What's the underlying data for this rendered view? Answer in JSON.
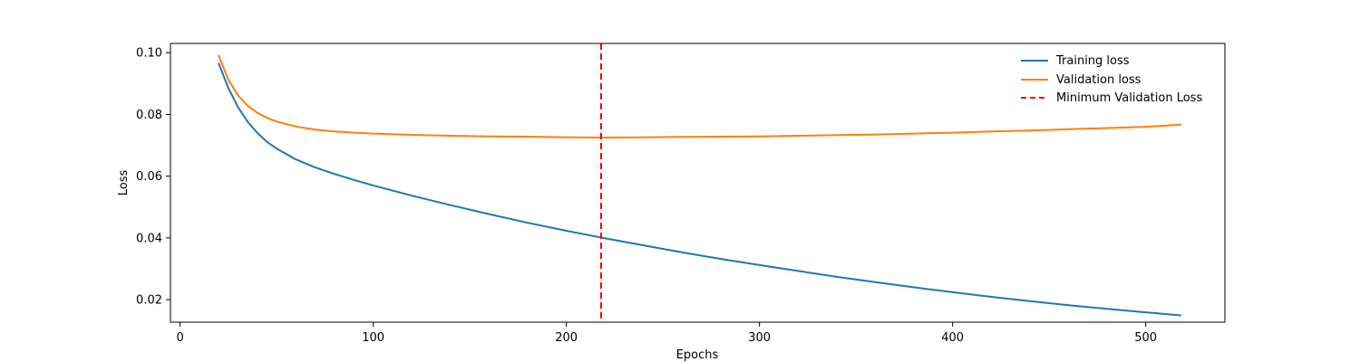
{
  "chart_data": {
    "type": "line",
    "title": "",
    "xlabel": "Epochs",
    "ylabel": "Loss",
    "xlim": [
      -5,
      541
    ],
    "ylim": [
      0.0127,
      0.103
    ],
    "xticks": [
      0,
      100,
      200,
      300,
      400,
      500
    ],
    "yticks": [
      0.02,
      0.04,
      0.06,
      0.08,
      0.1
    ],
    "xtick_labels": [
      "0",
      "100",
      "200",
      "300",
      "400",
      "500"
    ],
    "ytick_labels": [
      "0.02",
      "0.04",
      "0.06",
      "0.08",
      "0.10"
    ],
    "grid": false,
    "legend_position": "top-right",
    "series": [
      {
        "name": "Training loss",
        "color": "#1f77b4",
        "x": [
          20,
          25,
          30,
          35,
          40,
          45,
          50,
          60,
          70,
          80,
          90,
          100,
          120,
          140,
          160,
          180,
          200,
          218,
          240,
          260,
          280,
          300,
          320,
          340,
          360,
          380,
          400,
          420,
          440,
          460,
          480,
          500,
          518
        ],
        "y": [
          0.0965,
          0.0885,
          0.0823,
          0.0776,
          0.074,
          0.0711,
          0.0689,
          0.0654,
          0.0628,
          0.0607,
          0.0588,
          0.057,
          0.0537,
          0.0506,
          0.0477,
          0.0449,
          0.0423,
          0.0401,
          0.0376,
          0.0353,
          0.0332,
          0.0312,
          0.0293,
          0.0274,
          0.0257,
          0.024,
          0.0224,
          0.0209,
          0.0195,
          0.0182,
          0.017,
          0.0159,
          0.0149
        ]
      },
      {
        "name": "Validation loss",
        "color": "#ff7f0e",
        "x": [
          20,
          25,
          30,
          35,
          40,
          45,
          50,
          60,
          70,
          80,
          90,
          100,
          120,
          140,
          160,
          180,
          200,
          218,
          240,
          260,
          280,
          300,
          320,
          340,
          360,
          380,
          400,
          420,
          440,
          460,
          480,
          500,
          518
        ],
        "y": [
          0.099,
          0.0912,
          0.0861,
          0.0828,
          0.0805,
          0.0789,
          0.0777,
          0.0761,
          0.0751,
          0.0745,
          0.0741,
          0.0738,
          0.0734,
          0.0731,
          0.0729,
          0.0728,
          0.0726,
          0.0725,
          0.0726,
          0.0727,
          0.0728,
          0.0729,
          0.0731,
          0.0733,
          0.0735,
          0.0738,
          0.0741,
          0.0745,
          0.0748,
          0.0752,
          0.0756,
          0.076,
          0.0767
        ]
      }
    ],
    "vline": {
      "name": "Minimum Validation Loss",
      "x": 218,
      "color": "#ff0000",
      "style": "dashed"
    }
  }
}
